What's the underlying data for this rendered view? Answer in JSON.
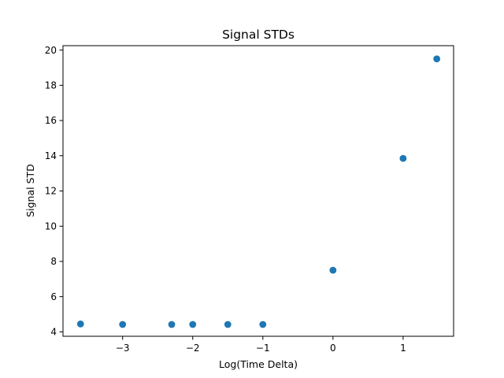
{
  "chart_data": {
    "type": "scatter",
    "title": "Signal STDs",
    "xlabel": "Log(Time Delta)",
    "ylabel": "Signal STD",
    "xlim": [
      -3.85,
      1.72
    ],
    "ylim": [
      3.75,
      20.25
    ],
    "xticks": [
      -3,
      -2,
      -1,
      0,
      1
    ],
    "xtick_labels": [
      "−3",
      "−2",
      "−1",
      "0",
      "1"
    ],
    "yticks": [
      4,
      6,
      8,
      10,
      12,
      14,
      16,
      18,
      20
    ],
    "ytick_labels": [
      "4",
      "6",
      "8",
      "10",
      "12",
      "14",
      "16",
      "18",
      "20"
    ],
    "grid": false,
    "legend": "none",
    "marker_color": "#1f77b4",
    "series": [
      {
        "x": [
          -3.6,
          -3.0,
          -2.3,
          -2.0,
          -1.5,
          -1.0,
          0.0,
          1.0,
          1.48
        ],
        "y": [
          4.45,
          4.42,
          4.42,
          4.42,
          4.42,
          4.42,
          7.5,
          13.85,
          19.5
        ]
      }
    ]
  }
}
